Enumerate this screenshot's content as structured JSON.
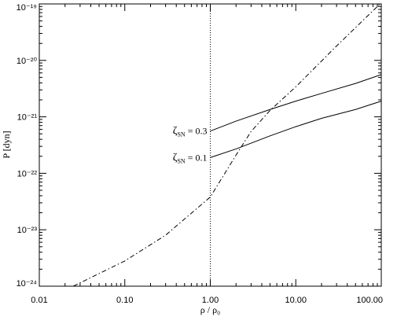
{
  "chart_data": {
    "type": "line",
    "xlabel": "ρ / ρ₀",
    "ylabel": "P  [dyn]",
    "x_scale": "log",
    "y_scale": "log",
    "xlim": [
      0.01,
      100
    ],
    "ylim": [
      1e-24,
      1e-19
    ],
    "x_ticks": [
      {
        "value": 0.01,
        "label": "0.01"
      },
      {
        "value": 0.1,
        "label": "0.10"
      },
      {
        "value": 1,
        "label": "1.00"
      },
      {
        "value": 10,
        "label": "10.00"
      },
      {
        "value": 100,
        "label": "100.00"
      }
    ],
    "y_ticks": [
      {
        "value": 1e-24,
        "label": "10⁻²⁴"
      },
      {
        "value": 1e-23,
        "label": "10⁻²³"
      },
      {
        "value": 1e-22,
        "label": "10⁻²²"
      },
      {
        "value": 1e-21,
        "label": "10⁻²¹"
      },
      {
        "value": 1e-20,
        "label": "10⁻²⁰"
      },
      {
        "value": 1e-19,
        "label": "10⁻¹⁹"
      }
    ],
    "grid": false,
    "series": [
      {
        "name": "ζSN = 0.3",
        "style": "solid",
        "x": [
          1,
          2,
          5,
          10,
          20,
          50,
          100
        ],
        "y": [
          5.6e-22,
          8.4e-22,
          1.35e-21,
          1.9e-21,
          2.6e-21,
          3.9e-21,
          5.6e-21
        ]
      },
      {
        "name": "ζSN = 0.1",
        "style": "solid",
        "x": [
          1,
          2,
          5,
          10,
          20,
          50,
          100
        ],
        "y": [
          1.9e-22,
          2.7e-22,
          4.6e-22,
          6.7e-22,
          9.4e-22,
          1.35e-21,
          1.9e-21
        ]
      },
      {
        "style": "dashdot",
        "x": [
          0.025,
          0.1,
          0.3,
          1,
          2,
          3,
          5,
          10,
          30,
          100
        ],
        "y": [
          1e-24,
          2.8e-24,
          8e-24,
          3.8e-23,
          2.1e-22,
          5.5e-22,
          1.3e-21,
          3.4e-21,
          1.8e-20,
          1.05e-19
        ]
      }
    ],
    "vlines": [
      {
        "x": 1,
        "style": "dotted"
      }
    ],
    "annotations": [
      {
        "series": 0,
        "prefix": "ζ",
        "sub": "SN",
        "suffix": " = 0.3"
      },
      {
        "series": 1,
        "prefix": "ζ",
        "sub": "SN",
        "suffix": " = 0.1"
      }
    ]
  }
}
